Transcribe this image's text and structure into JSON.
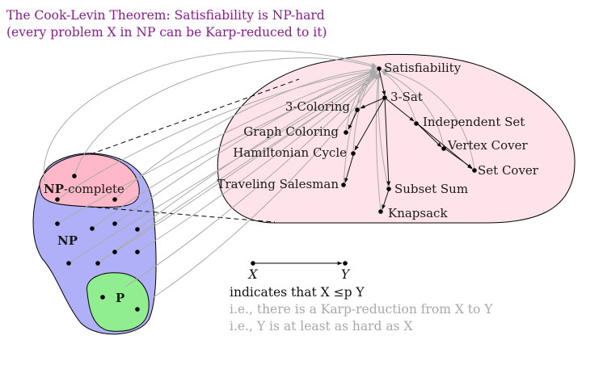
{
  "title": {
    "line1": "The Cook-Levin Theorem: Satisfiability is NP-hard",
    "line2": "(every problem X in NP can be Karp-reduced to it)"
  },
  "regions": {
    "np_complete": {
      "bold": "NP",
      "rest": "-complete"
    },
    "np": "NP",
    "p": "P"
  },
  "problems": {
    "satisfiability": "Satisfiability",
    "three_sat": "3-Sat",
    "three_coloring": "3-Coloring",
    "graph_coloring": "Graph Coloring",
    "hamiltonian_cycle": "Hamiltonian Cycle",
    "traveling_salesman": "Traveling Salesman",
    "subset_sum": "Subset Sum",
    "knapsack": "Knapsack",
    "independent_set": "Independent Set",
    "vertex_cover": "Vertex Cover",
    "set_cover": "Set Cover"
  },
  "legend": {
    "x_label": "X",
    "y_label": "Y",
    "line1": "indicates that X ≤p Y",
    "line2": "i.e., there is a Karp-reduction from X to Y",
    "line3": "i.e., Y is at least as hard as X"
  },
  "colors": {
    "title": "#8b1a8f",
    "np_fill": "#b0b0f8",
    "np_complete_fill": "#ffb8c8",
    "p_fill": "#90ee90",
    "np_complete_region_fill": "#ffe3ea",
    "reduction_gray": "#aaaaaa"
  }
}
